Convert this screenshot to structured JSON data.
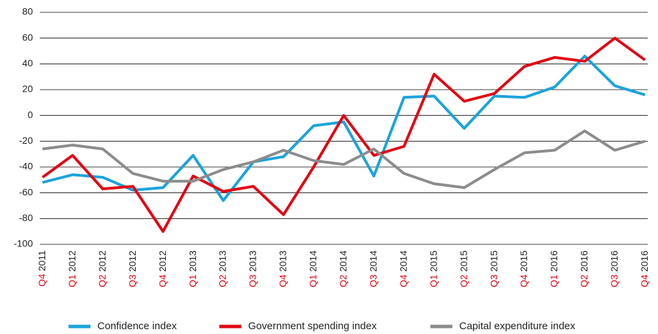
{
  "chart_data": {
    "type": "line",
    "categories": [
      "Q4 2011",
      "Q1 2012",
      "Q2 2012",
      "Q3 2012",
      "Q4 2012",
      "Q1 2013",
      "Q2 2013",
      "Q3 2013",
      "Q4 2013",
      "Q1 2014",
      "Q2 2014",
      "Q3 2014",
      "Q4 2014",
      "Q1 2015",
      "Q2 2015",
      "Q3 2015",
      "Q4 2015",
      "Q1 2016",
      "Q2 2016",
      "Q3 2016",
      "Q4 2016"
    ],
    "series": [
      {
        "name": "Confidence index",
        "color": "#1aa3dc",
        "values": [
          -52,
          -46,
          -48,
          -58,
          -56,
          -31,
          -66,
          -36,
          -32,
          -8,
          -5,
          -47,
          14,
          15,
          -10,
          15,
          14,
          22,
          46,
          23,
          16
        ]
      },
      {
        "name": "Government spending index",
        "color": "#e30613",
        "values": [
          -48,
          -31,
          -57,
          -55,
          -90,
          -47,
          -59,
          -55,
          -77,
          -40,
          0,
          -31,
          -24,
          32,
          11,
          17,
          38,
          45,
          42,
          60,
          43
        ]
      },
      {
        "name": "Capital expenditure index",
        "color": "#8c8c8c",
        "values": [
          -26,
          -23,
          -26,
          -45,
          -51,
          -51,
          -42,
          -36,
          -27,
          -35,
          -38,
          -26,
          -45,
          -53,
          -56,
          -42,
          -29,
          -27,
          -12,
          -27,
          -20
        ]
      }
    ],
    "ylim": [
      -100,
      80
    ],
    "yticks": [
      -100,
      -80,
      -60,
      -40,
      -20,
      0,
      20,
      40,
      60,
      80
    ],
    "grid": true,
    "quarter_color": "#e30613"
  }
}
